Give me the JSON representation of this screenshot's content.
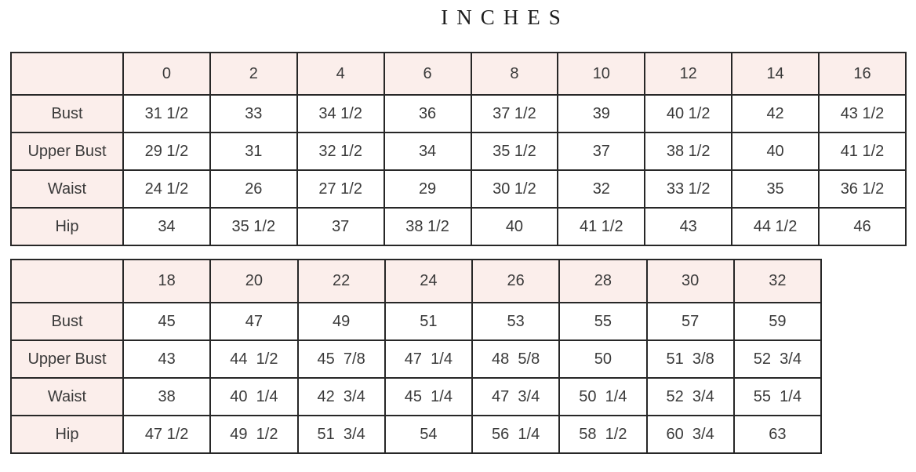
{
  "title": "INCHES",
  "colors": {
    "header_fill": "#fbeeeb",
    "grid_border": "#272727",
    "text": "#3a3a3a",
    "background": "#ffffff"
  },
  "chart_data": [
    {
      "type": "table",
      "title": "INCHES (sizes 0-16)",
      "categories": [
        "0",
        "2",
        "4",
        "6",
        "8",
        "10",
        "12",
        "14",
        "16"
      ],
      "series": [
        {
          "name": "Bust",
          "values": [
            "31 1/2",
            "33",
            "34 1/2",
            "36",
            "37 1/2",
            "39",
            "40 1/2",
            "42",
            "43 1/2"
          ]
        },
        {
          "name": "Upper Bust",
          "values": [
            "29 1/2",
            "31",
            "32 1/2",
            "34",
            "35 1/2",
            "37",
            "38 1/2",
            "40",
            "41 1/2"
          ]
        },
        {
          "name": "Waist",
          "values": [
            "24 1/2",
            "26",
            "27 1/2",
            "29",
            "30 1/2",
            "32",
            "33 1/2",
            "35",
            "36 1/2"
          ]
        },
        {
          "name": "Hip",
          "values": [
            "34",
            "35 1/2",
            "37",
            "38 1/2",
            "40",
            "41 1/2",
            "43",
            "44 1/2",
            "46"
          ]
        }
      ],
      "layout": {
        "header_row_fill": "pink",
        "label_column_fill": "pink",
        "grid": true
      }
    },
    {
      "type": "table",
      "title": "INCHES (sizes 18-32)",
      "categories": [
        "18",
        "20",
        "22",
        "24",
        "26",
        "28",
        "30",
        "32"
      ],
      "series": [
        {
          "name": "Bust",
          "values": [
            "45",
            "47",
            "49",
            "51",
            "53",
            "55",
            "57",
            "59"
          ]
        },
        {
          "name": "Upper Bust",
          "values": [
            "43",
            "44  1/2",
            "45  7/8",
            "47  1/4",
            "48  5/8",
            "50",
            "51  3/8",
            "52  3/4"
          ]
        },
        {
          "name": "Waist",
          "values": [
            "38",
            "40  1/4",
            "42  3/4",
            "45  1/4",
            "47  3/4",
            "50  1/4",
            "52  3/4",
            "55  1/4"
          ]
        },
        {
          "name": "Hip",
          "values": [
            "47 1/2",
            "49  1/2",
            "51  3/4",
            "54",
            "56  1/4",
            "58  1/2",
            "60  3/4",
            "63"
          ]
        }
      ],
      "layout": {
        "header_row_fill": "pink",
        "label_column_fill": "pink",
        "grid": true
      }
    }
  ]
}
